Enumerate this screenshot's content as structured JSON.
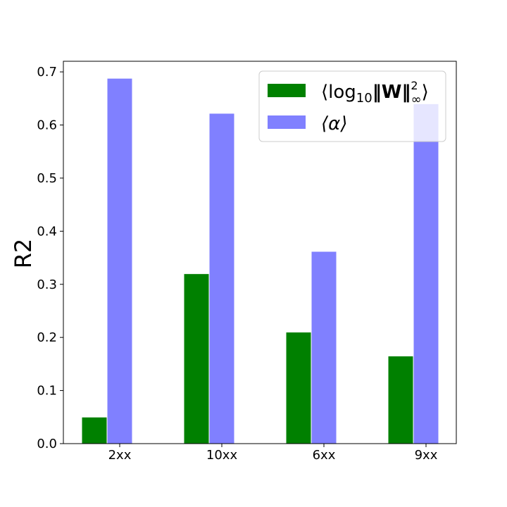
{
  "chart_data": {
    "type": "bar",
    "title": "",
    "xlabel": "",
    "ylabel": "R2",
    "ylim": [
      0,
      0.72
    ],
    "yticks": [
      0.0,
      0.1,
      0.2,
      0.3,
      0.4,
      0.5,
      0.6,
      0.7
    ],
    "ytick_labels": [
      "0.0",
      "0.1",
      "0.2",
      "0.3",
      "0.4",
      "0.5",
      "0.6",
      "0.7"
    ],
    "categories": [
      "2xx",
      "10xx",
      "6xx",
      "9xx"
    ],
    "series": [
      {
        "name": "⟨log₁₀‖W‖²∞⟩",
        "color": "#008000",
        "values": [
          0.05,
          0.32,
          0.21,
          0.165
        ]
      },
      {
        "name": "⟨α⟩",
        "color": "#8080ff",
        "values": [
          0.688,
          0.622,
          0.362,
          0.64
        ]
      }
    ],
    "legend": {
      "placement": "top-right",
      "entries": [
        {
          "key": "series1",
          "label_main": "⟨log",
          "label_sub": "10",
          "label_bold": "‖W‖",
          "label_sup": "2",
          "label_subinf": "∞",
          "label_end": "⟩"
        },
        {
          "key": "series2",
          "label_main": "⟨α⟩"
        }
      ]
    },
    "grid": false
  }
}
